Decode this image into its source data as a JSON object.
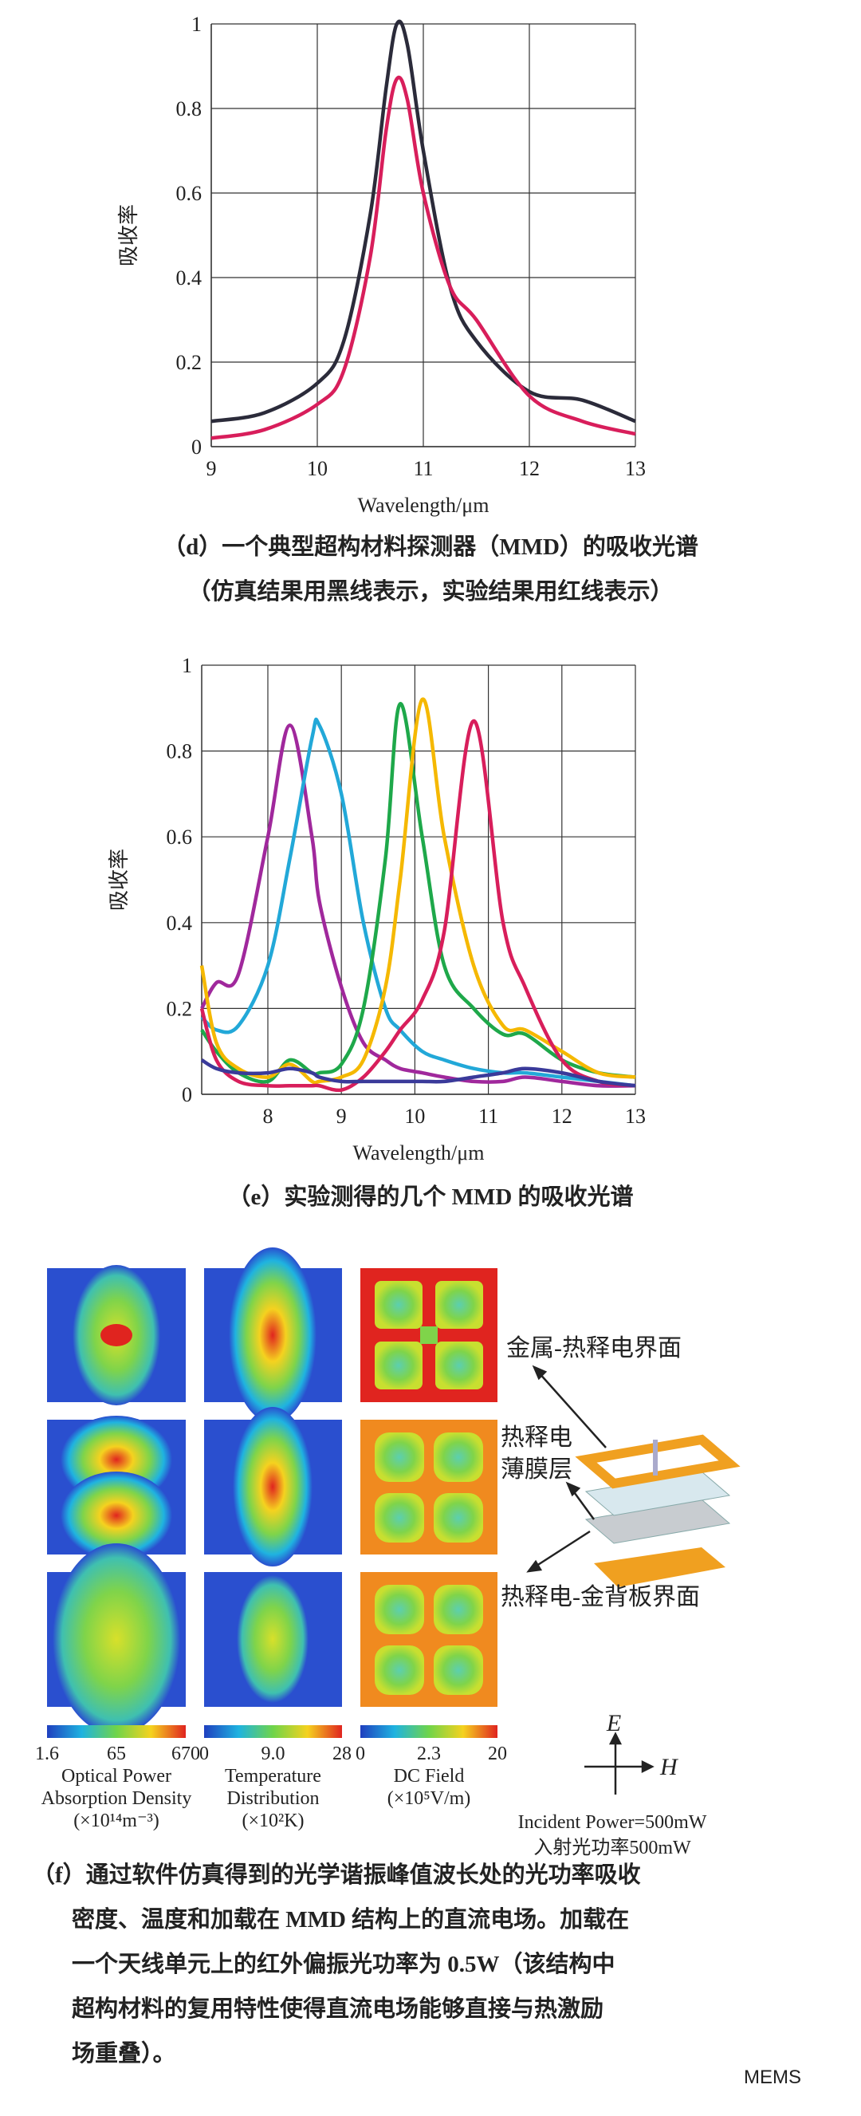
{
  "chart_data": [
    {
      "type": "line",
      "ylabel": "吸收率",
      "xlabel": "Wavelength/μm",
      "caption": [
        "（d）一个典型超构材料探测器（MMD）的吸收光谱",
        "（仿真结果用黑线表示，实验结果用红线表示）"
      ],
      "x": [
        9,
        9.5,
        10,
        10.25,
        10.5,
        10.65,
        10.75,
        10.85,
        11,
        11.25,
        11.5,
        12,
        12.5,
        13
      ],
      "series": [
        {
          "color": "#2b2b3a",
          "values": [
            0.06,
            0.08,
            0.15,
            0.25,
            0.55,
            0.85,
            1.0,
            0.95,
            0.7,
            0.38,
            0.25,
            0.13,
            0.11,
            0.06
          ]
        },
        {
          "color": "#d81e5b",
          "values": [
            0.02,
            0.04,
            0.1,
            0.18,
            0.45,
            0.75,
            0.87,
            0.82,
            0.6,
            0.38,
            0.3,
            0.12,
            0.06,
            0.03
          ]
        }
      ],
      "xlim": [
        9,
        13
      ],
      "xticks": [
        9,
        10,
        11,
        12,
        13
      ],
      "ylim": [
        0,
        1
      ],
      "yticks": [
        0,
        0.2,
        0.4,
        0.6,
        0.8,
        1
      ],
      "grid": true
    },
    {
      "type": "line",
      "ylabel": "吸收率",
      "xlabel": "Wavelength/μm",
      "caption": [
        "（e）实验测得的几个 MMD 的吸收光谱"
      ],
      "x": [
        7.1,
        7.3,
        7.6,
        8,
        8.3,
        8.6,
        8.7,
        9,
        9.3,
        9.6,
        9.8,
        10.1,
        10.4,
        10.8,
        11.2,
        11.5,
        12,
        12.5,
        13
      ],
      "series": [
        {
          "color": "#a0289c",
          "values": [
            0.2,
            0.26,
            0.28,
            0.6,
            0.86,
            0.6,
            0.45,
            0.25,
            0.12,
            0.08,
            0.06,
            0.05,
            0.04,
            0.03,
            0.03,
            0.04,
            0.03,
            0.02,
            0.02
          ]
        },
        {
          "color": "#22a8d8",
          "values": [
            0.18,
            0.15,
            0.16,
            0.3,
            0.55,
            0.83,
            0.86,
            0.7,
            0.4,
            0.2,
            0.15,
            0.1,
            0.08,
            0.06,
            0.05,
            0.05,
            0.04,
            0.03,
            0.02
          ]
        },
        {
          "color": "#1ea84a",
          "values": [
            0.15,
            0.1,
            0.05,
            0.03,
            0.08,
            0.05,
            0.05,
            0.07,
            0.2,
            0.55,
            0.91,
            0.6,
            0.3,
            0.2,
            0.14,
            0.14,
            0.08,
            0.05,
            0.04
          ]
        },
        {
          "color": "#f5b800",
          "values": [
            0.3,
            0.12,
            0.06,
            0.04,
            0.07,
            0.03,
            0.03,
            0.04,
            0.08,
            0.25,
            0.5,
            0.92,
            0.6,
            0.3,
            0.16,
            0.15,
            0.1,
            0.05,
            0.04
          ]
        },
        {
          "color": "#d81e5b",
          "values": [
            0.2,
            0.08,
            0.03,
            0.02,
            0.02,
            0.02,
            0.02,
            0.01,
            0.04,
            0.1,
            0.15,
            0.22,
            0.38,
            0.87,
            0.4,
            0.25,
            0.08,
            0.03,
            0.02
          ]
        },
        {
          "color": "#3a3a9a",
          "values": [
            0.08,
            0.06,
            0.05,
            0.05,
            0.06,
            0.05,
            0.04,
            0.03,
            0.03,
            0.03,
            0.03,
            0.03,
            0.03,
            0.04,
            0.05,
            0.06,
            0.05,
            0.03,
            0.02
          ]
        }
      ],
      "xlim": [
        7.1,
        13
      ],
      "xticks": [
        8,
        9,
        10,
        11,
        12,
        13
      ],
      "ylim": [
        0,
        1
      ],
      "yticks": [
        0,
        0.2,
        0.4,
        0.6,
        0.8,
        1
      ],
      "grid": true
    }
  ],
  "figure_f": {
    "labels": [
      "金属-热释电界面",
      "热释电",
      "薄膜层",
      "热释电-金背板界面"
    ],
    "colorbars": [
      {
        "ticks": [
          "1.6",
          "65",
          "670"
        ],
        "title": [
          "Optical Power",
          "Absorption Density",
          "(×10¹⁴m⁻³)"
        ]
      },
      {
        "ticks": [
          "0",
          "9.0",
          "28"
        ],
        "title": [
          "Temperature",
          "Distribution",
          "(×10²K)"
        ]
      },
      {
        "ticks": [
          "0",
          "2.3",
          "20"
        ],
        "title": [
          "DC Field",
          "(×10⁵V/m)"
        ]
      }
    ],
    "axes": [
      "E",
      "H"
    ],
    "power": [
      "Incident Power=500mW",
      "入射光功率500mW"
    ],
    "caption": [
      "（f）通过软件仿真得到的光学谐振峰值波长处的光功率吸收",
      "密度、温度和加载在 MMD 结构上的直流电场。加载在",
      "一个天线单元上的红外偏振光功率为 0.5W（该结构中",
      "超构材料的复用特性使得直流电场能够直接与热激励",
      "场重叠）。"
    ]
  },
  "watermark": "MEMS"
}
